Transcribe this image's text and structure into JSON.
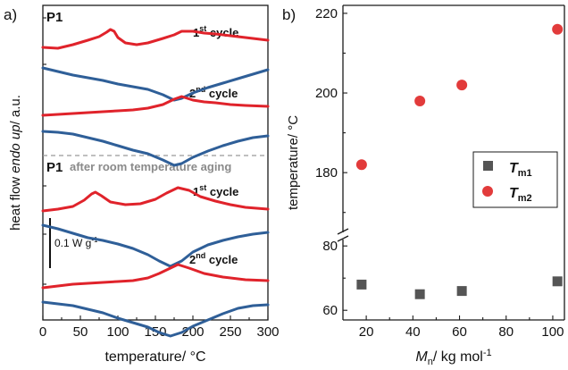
{
  "chart_data": [
    {
      "type": "line",
      "panel_label": "a)",
      "xlabel": "temperature/ °C",
      "ylabel_parts": [
        "heat flow ",
        "endo up",
        "/ a.u."
      ],
      "xlim": [
        0,
        300
      ],
      "xticks": [
        0,
        50,
        100,
        150,
        200,
        250,
        300
      ],
      "scalebar_label": "0.1 W g-1",
      "scalebar_parts": [
        "0.1 W g",
        "-1"
      ],
      "section_labels": [
        "P1",
        "P1"
      ],
      "aging_label": "after room temperature aging",
      "colors": {
        "heating": "#e0232b",
        "cooling": "#2f5f98",
        "divider": "#999999",
        "aging": "#8a8a8a"
      },
      "cycles": [
        {
          "label": "1st cycle",
          "label_parts": [
            "1",
            "st",
            " cycle"
          ],
          "heating": [
            [
              0,
              -3
            ],
            [
              20,
              -4
            ],
            [
              40,
              0
            ],
            [
              60,
              5
            ],
            [
              75,
              9
            ],
            [
              85,
              14
            ],
            [
              90,
              17
            ],
            [
              95,
              15
            ],
            [
              100,
              8
            ],
            [
              110,
              2
            ],
            [
              125,
              0
            ],
            [
              140,
              2
            ],
            [
              160,
              7
            ],
            [
              175,
              11
            ],
            [
              185,
              15
            ],
            [
              200,
              15
            ],
            [
              215,
              13
            ],
            [
              230,
              12
            ],
            [
              250,
              10
            ],
            [
              270,
              8
            ],
            [
              290,
              6
            ],
            [
              300,
              5
            ]
          ],
          "cooling": [
            [
              0,
              -26
            ],
            [
              20,
              -30
            ],
            [
              40,
              -34
            ],
            [
              60,
              -37
            ],
            [
              80,
              -40
            ],
            [
              100,
              -44
            ],
            [
              120,
              -47
            ],
            [
              140,
              -50
            ],
            [
              160,
              -56
            ],
            [
              175,
              -62
            ],
            [
              185,
              -60
            ],
            [
              200,
              -54
            ],
            [
              220,
              -48
            ],
            [
              240,
              -43
            ],
            [
              260,
              -38
            ],
            [
              280,
              -33
            ],
            [
              300,
              -28
            ]
          ]
        },
        {
          "label": "2nd cycle",
          "label_parts": [
            "2",
            "nd",
            " cycle"
          ],
          "heating": [
            [
              0,
              -4
            ],
            [
              20,
              -3
            ],
            [
              40,
              -2
            ],
            [
              60,
              -1
            ],
            [
              80,
              0
            ],
            [
              100,
              1
            ],
            [
              120,
              2
            ],
            [
              140,
              4
            ],
            [
              160,
              8
            ],
            [
              175,
              14
            ],
            [
              185,
              17
            ],
            [
              200,
              13
            ],
            [
              215,
              11
            ],
            [
              230,
              10
            ],
            [
              250,
              8
            ],
            [
              270,
              7
            ],
            [
              300,
              6
            ]
          ],
          "cooling": [
            [
              0,
              -22
            ],
            [
              20,
              -23
            ],
            [
              40,
              -25
            ],
            [
              60,
              -29
            ],
            [
              80,
              -33
            ],
            [
              100,
              -38
            ],
            [
              120,
              -43
            ],
            [
              140,
              -47
            ],
            [
              160,
              -54
            ],
            [
              175,
              -60
            ],
            [
              185,
              -58
            ],
            [
              200,
              -51
            ],
            [
              220,
              -44
            ],
            [
              240,
              -38
            ],
            [
              260,
              -33
            ],
            [
              280,
              -29
            ],
            [
              300,
              -27
            ]
          ]
        },
        {
          "label": "1st cycle",
          "label_parts": [
            "1",
            "st",
            " cycle"
          ],
          "heating": [
            [
              0,
              -4
            ],
            [
              20,
              -2
            ],
            [
              40,
              1
            ],
            [
              55,
              8
            ],
            [
              65,
              15
            ],
            [
              70,
              17
            ],
            [
              78,
              13
            ],
            [
              90,
              6
            ],
            [
              110,
              3
            ],
            [
              130,
              4
            ],
            [
              150,
              9
            ],
            [
              165,
              16
            ],
            [
              180,
              22
            ],
            [
              195,
              19
            ],
            [
              210,
              12
            ],
            [
              230,
              7
            ],
            [
              250,
              3
            ],
            [
              270,
              0
            ],
            [
              300,
              -2
            ]
          ],
          "cooling": [
            [
              0,
              -20
            ],
            [
              20,
              -24
            ],
            [
              40,
              -29
            ],
            [
              60,
              -34
            ],
            [
              80,
              -37
            ],
            [
              100,
              -41
            ],
            [
              120,
              -46
            ],
            [
              140,
              -53
            ],
            [
              155,
              -60
            ],
            [
              170,
              -66
            ],
            [
              185,
              -60
            ],
            [
              200,
              -50
            ],
            [
              220,
              -42
            ],
            [
              240,
              -37
            ],
            [
              260,
              -33
            ],
            [
              280,
              -30
            ],
            [
              300,
              -28
            ]
          ]
        },
        {
          "label": "2nd cycle",
          "label_parts": [
            "2",
            "nd",
            " cycle"
          ],
          "heating": [
            [
              0,
              -6
            ],
            [
              20,
              -4
            ],
            [
              40,
              -2
            ],
            [
              60,
              -1
            ],
            [
              80,
              0
            ],
            [
              100,
              1
            ],
            [
              120,
              2
            ],
            [
              140,
              5
            ],
            [
              155,
              10
            ],
            [
              170,
              16
            ],
            [
              180,
              20
            ],
            [
              195,
              16
            ],
            [
              215,
              10
            ],
            [
              240,
              6
            ],
            [
              270,
              3
            ],
            [
              300,
              2
            ]
          ],
          "cooling": [
            [
              0,
              -22
            ],
            [
              20,
              -24
            ],
            [
              40,
              -26
            ],
            [
              60,
              -30
            ],
            [
              80,
              -34
            ],
            [
              100,
              -40
            ],
            [
              120,
              -45
            ],
            [
              140,
              -50
            ],
            [
              155,
              -56
            ],
            [
              170,
              -60
            ],
            [
              185,
              -56
            ],
            [
              200,
              -49
            ],
            [
              220,
              -42
            ],
            [
              240,
              -35
            ],
            [
              260,
              -29
            ],
            [
              280,
              -26
            ],
            [
              300,
              -25
            ]
          ]
        }
      ]
    },
    {
      "type": "scatter",
      "panel_label": "b)",
      "xlabel_parts": [
        "M",
        "n",
        "/ kg mol",
        "-1"
      ],
      "xlabel": "Mn/ kg mol-1",
      "ylabel": "temperature/ °C",
      "xlim": [
        10,
        105
      ],
      "xticks": [
        20,
        40,
        60,
        80,
        100
      ],
      "broken_y_axis": true,
      "ylim_upper": [
        165,
        222
      ],
      "yticks_upper": [
        180,
        200,
        220
      ],
      "ylim_lower": [
        57,
        82
      ],
      "yticks_lower": [
        60,
        80
      ],
      "legend_position": "center-right",
      "series": [
        {
          "name": "Tm1",
          "name_parts": [
            "T",
            "m1"
          ],
          "marker": "square",
          "color": "#555555",
          "x": [
            18,
            43,
            61,
            102
          ],
          "y": [
            68,
            65,
            66,
            69
          ]
        },
        {
          "name": "Tm2",
          "name_parts": [
            "T",
            "m2"
          ],
          "marker": "circle",
          "color": "#e23b3b",
          "x": [
            18,
            43,
            61,
            102
          ],
          "y": [
            182,
            198,
            202,
            216
          ]
        }
      ]
    }
  ]
}
